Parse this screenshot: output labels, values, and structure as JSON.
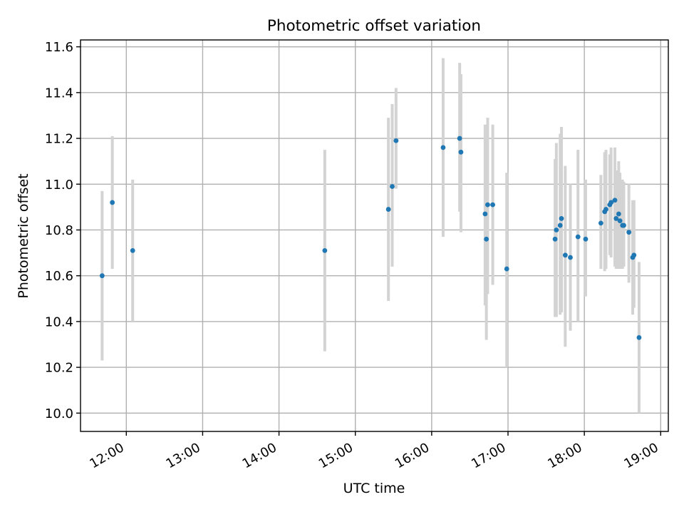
{
  "chart_data": {
    "type": "scatter",
    "title": "Photometric offset variation",
    "xlabel": "UTC time",
    "ylabel": "Photometric offset",
    "xlim": [
      "11:24",
      "19:06"
    ],
    "ylim": [
      9.92,
      11.63
    ],
    "xticks": [
      "12:00",
      "13:00",
      "14:00",
      "15:00",
      "16:00",
      "17:00",
      "18:00",
      "19:00"
    ],
    "yticks": [
      "10.0",
      "10.2",
      "10.4",
      "10.6",
      "10.8",
      "11.0",
      "11.2",
      "11.4",
      "11.6"
    ],
    "grid": true,
    "colors": {
      "points": "#1f77b4",
      "errorbars": "#d3d3d3"
    },
    "series": [
      {
        "points": [
          {
            "x": "11:41",
            "y": 10.6,
            "ylow": 10.23,
            "yhigh": 10.97
          },
          {
            "x": "11:49",
            "y": 10.92,
            "ylow": 10.63,
            "yhigh": 11.21
          },
          {
            "x": "12:05",
            "y": 10.71,
            "ylow": 10.4,
            "yhigh": 11.02
          },
          {
            "x": "14:36",
            "y": 10.71,
            "ylow": 10.27,
            "yhigh": 11.15
          },
          {
            "x": "15:26",
            "y": 10.89,
            "ylow": 10.49,
            "yhigh": 11.29
          },
          {
            "x": "15:29",
            "y": 10.99,
            "ylow": 10.64,
            "yhigh": 11.35
          },
          {
            "x": "15:32",
            "y": 11.19,
            "ylow": 10.98,
            "yhigh": 11.42
          },
          {
            "x": "16:09",
            "y": 11.16,
            "ylow": 10.77,
            "yhigh": 11.55
          },
          {
            "x": "16:22",
            "y": 11.2,
            "ylow": 10.88,
            "yhigh": 11.53
          },
          {
            "x": "16:23",
            "y": 11.14,
            "ylow": 10.79,
            "yhigh": 11.48
          },
          {
            "x": "16:42",
            "y": 10.87,
            "ylow": 10.47,
            "yhigh": 11.26
          },
          {
            "x": "16:43",
            "y": 10.76,
            "ylow": 10.32,
            "yhigh": 11.2
          },
          {
            "x": "16:44",
            "y": 10.91,
            "ylow": 10.52,
            "yhigh": 11.29
          },
          {
            "x": "16:48",
            "y": 10.91,
            "ylow": 10.56,
            "yhigh": 11.26
          },
          {
            "x": "16:59",
            "y": 10.63,
            "ylow": 10.2,
            "yhigh": 11.05
          },
          {
            "x": "17:37",
            "y": 10.76,
            "ylow": 10.42,
            "yhigh": 11.11
          },
          {
            "x": "17:38",
            "y": 10.8,
            "ylow": 10.42,
            "yhigh": 11.18
          },
          {
            "x": "17:41",
            "y": 10.82,
            "ylow": 10.43,
            "yhigh": 11.22
          },
          {
            "x": "17:42",
            "y": 10.85,
            "ylow": 10.44,
            "yhigh": 11.25
          },
          {
            "x": "17:45",
            "y": 10.69,
            "ylow": 10.29,
            "yhigh": 11.08
          },
          {
            "x": "17:49",
            "y": 10.68,
            "ylow": 10.36,
            "yhigh": 11.0
          },
          {
            "x": "17:55",
            "y": 10.77,
            "ylow": 10.4,
            "yhigh": 11.15
          },
          {
            "x": "18:01",
            "y": 10.76,
            "ylow": 10.51,
            "yhigh": 11.02
          },
          {
            "x": "18:13",
            "y": 10.83,
            "ylow": 10.63,
            "yhigh": 11.04
          },
          {
            "x": "18:16",
            "y": 10.88,
            "ylow": 10.62,
            "yhigh": 11.14
          },
          {
            "x": "18:17",
            "y": 10.89,
            "ylow": 10.63,
            "yhigh": 11.15
          },
          {
            "x": "18:20",
            "y": 10.91,
            "ylow": 10.69,
            "yhigh": 11.13
          },
          {
            "x": "18:21",
            "y": 10.92,
            "ylow": 10.68,
            "yhigh": 11.16
          },
          {
            "x": "18:24",
            "y": 10.93,
            "ylow": 10.64,
            "yhigh": 11.16
          },
          {
            "x": "18:25",
            "y": 10.85,
            "ylow": 10.63,
            "yhigh": 11.06
          },
          {
            "x": "18:27",
            "y": 10.87,
            "ylow": 10.63,
            "yhigh": 11.1
          },
          {
            "x": "18:28",
            "y": 10.84,
            "ylow": 10.63,
            "yhigh": 11.05
          },
          {
            "x": "18:30",
            "y": 10.82,
            "ylow": 10.63,
            "yhigh": 11.02
          },
          {
            "x": "18:31",
            "y": 10.82,
            "ylow": 10.64,
            "yhigh": 11.01
          },
          {
            "x": "18:35",
            "y": 10.79,
            "ylow": 10.57,
            "yhigh": 11.0
          },
          {
            "x": "18:38",
            "y": 10.68,
            "ylow": 10.43,
            "yhigh": 10.93
          },
          {
            "x": "18:39",
            "y": 10.69,
            "ylow": 10.46,
            "yhigh": 10.93
          },
          {
            "x": "18:43",
            "y": 10.33,
            "ylow": 10.0,
            "yhigh": 10.66
          }
        ]
      }
    ]
  }
}
